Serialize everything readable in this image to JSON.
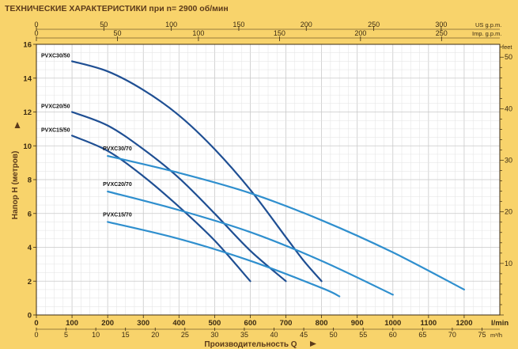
{
  "chart_data": {
    "type": "line",
    "title": "ТЕХНИЧЕСКИЕ ХАРАКТЕРИСТИКИ при n= 2900 об/мин",
    "xlabel": "Производительность Q",
    "ylabel": "Напор H   (метров)",
    "grid": true,
    "axes": {
      "x_lmin": {
        "range": [
          0,
          1300
        ],
        "ticks": [
          0,
          100,
          200,
          300,
          400,
          500,
          600,
          700,
          800,
          900,
          1000,
          1100,
          1200
        ],
        "unit": "l/min"
      },
      "x_m3h": {
        "ticks": [
          0,
          5,
          10,
          15,
          20,
          25,
          30,
          35,
          40,
          45,
          50,
          55,
          60,
          65,
          70,
          75
        ],
        "unit": "m³/h"
      },
      "x_usgpm": {
        "ticks": [
          0,
          50,
          100,
          150,
          200,
          250,
          300
        ],
        "unit": "US g.p.m."
      },
      "x_impgpm": {
        "ticks": [
          0,
          50,
          100,
          150,
          200,
          250
        ],
        "unit": "Imp. g.p.m."
      },
      "y_m": {
        "range": [
          0,
          16
        ],
        "ticks": [
          0,
          2,
          4,
          6,
          8,
          10,
          12,
          14,
          16
        ]
      },
      "y_ft": {
        "ticks": [
          10,
          20,
          30,
          40,
          50
        ],
        "unit": "feet"
      }
    },
    "series": [
      {
        "name": "PVXC30/50",
        "color": "#1f4f93",
        "x": [
          100,
          200,
          300,
          400,
          500,
          600,
          700,
          750,
          800
        ],
        "y": [
          15.0,
          14.4,
          13.3,
          11.8,
          9.8,
          7.4,
          4.6,
          3.2,
          2.0
        ]
      },
      {
        "name": "PVXC20/50",
        "color": "#1f4f93",
        "x": [
          100,
          200,
          300,
          400,
          500,
          600,
          700
        ],
        "y": [
          12.0,
          11.2,
          9.8,
          8.1,
          6.0,
          3.8,
          2.0
        ]
      },
      {
        "name": "PVXC15/50",
        "color": "#1f4f93",
        "x": [
          100,
          200,
          300,
          400,
          500,
          600
        ],
        "y": [
          10.6,
          9.7,
          8.2,
          6.4,
          4.4,
          2.0
        ]
      },
      {
        "name": "PVXC30/70",
        "color": "#2f8fce",
        "x": [
          200,
          400,
          600,
          800,
          1000,
          1200
        ],
        "y": [
          9.4,
          8.4,
          7.2,
          5.6,
          3.7,
          1.5
        ]
      },
      {
        "name": "PVXC20/70",
        "color": "#2f8fce",
        "x": [
          200,
          400,
          600,
          800,
          1000
        ],
        "y": [
          7.3,
          6.2,
          4.9,
          3.2,
          1.2
        ]
      },
      {
        "name": "PVXC15/70",
        "color": "#2f8fce",
        "x": [
          200,
          400,
          600,
          800,
          850
        ],
        "y": [
          5.5,
          4.5,
          3.2,
          1.6,
          1.1
        ]
      }
    ]
  }
}
